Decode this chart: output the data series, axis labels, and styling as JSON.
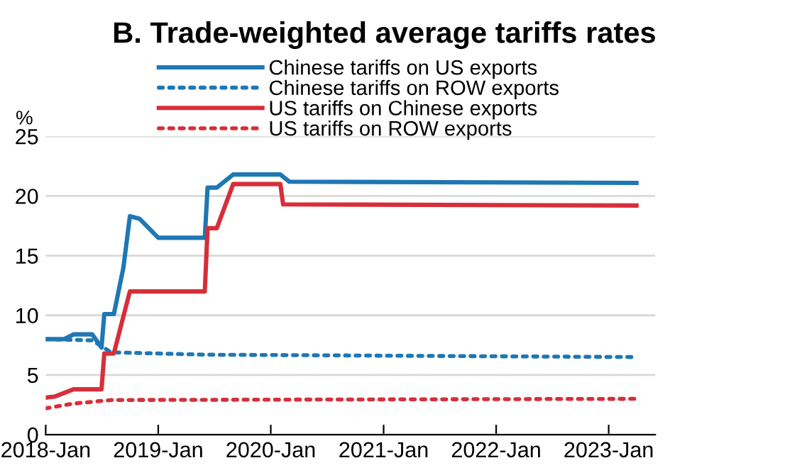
{
  "chart_data": {
    "type": "line",
    "title": "B. Trade-weighted average tariffs rates",
    "ylabel": "%",
    "series": [
      {
        "name": "Chinese tariffs on US exports",
        "color": "#1f77b4",
        "line_style": "solid",
        "x": [
          "2018-01-01",
          "2018-03-01",
          "2018-04-01",
          "2018-06-01",
          "2018-07-01",
          "2018-07-10",
          "2018-08-10",
          "2018-09-10",
          "2018-10-01",
          "2018-11-01",
          "2019-01-01",
          "2019-06-01",
          "2019-06-10",
          "2019-07-10",
          "2019-09-01",
          "2020-02-01",
          "2020-03-01",
          "2023-04-01"
        ],
        "values": [
          8,
          8,
          8.4,
          8.4,
          7.3,
          10.1,
          10.1,
          14,
          18.3,
          18.1,
          16.5,
          16.5,
          20.7,
          20.7,
          21.8,
          21.8,
          21.2,
          21.1
        ]
      },
      {
        "name": "Chinese tariffs on ROW exports",
        "color": "#1f77b4",
        "line_style": "dotted",
        "x": [
          "2018-01-01",
          "2018-06-01",
          "2018-08-01",
          "2019-06-01",
          "2023-04-01"
        ],
        "values": [
          8,
          7.9,
          6.9,
          6.7,
          6.5
        ]
      },
      {
        "name": "US tariffs on Chinese exports",
        "color": "#d62f3a",
        "line_style": "solid",
        "x": [
          "2018-01-01",
          "2018-02-01",
          "2018-04-01",
          "2018-07-01",
          "2018-07-10",
          "2018-08-10",
          "2018-10-01",
          "2019-06-01",
          "2019-06-10",
          "2019-07-10",
          "2019-09-01",
          "2020-02-01",
          "2020-02-10",
          "2023-04-01"
        ],
        "values": [
          3.1,
          3.2,
          3.8,
          3.8,
          6.8,
          6.8,
          12,
          12,
          17.3,
          17.3,
          21,
          21,
          19.3,
          19.2
        ]
      },
      {
        "name": "US tariffs on ROW exports",
        "color": "#d62f3a",
        "line_style": "dotted",
        "x": [
          "2018-01-01",
          "2018-04-01",
          "2018-08-01",
          "2023-04-01"
        ],
        "values": [
          2.2,
          2.6,
          2.9,
          3.0
        ]
      }
    ],
    "xlim": [
      "2018-01-01",
      "2023-06-01"
    ],
    "xticks": [
      {
        "value": "2018-01-01",
        "label": "2018-Jan"
      },
      {
        "value": "2019-01-01",
        "label": "2019-Jan"
      },
      {
        "value": "2020-01-01",
        "label": "2020-Jan"
      },
      {
        "value": "2021-01-01",
        "label": "2021-Jan"
      },
      {
        "value": "2022-01-01",
        "label": "2022-Jan"
      },
      {
        "value": "2023-01-01",
        "label": "2023-Jan"
      }
    ],
    "ylim": [
      0,
      25
    ],
    "yticks": [
      0,
      5,
      10,
      15,
      20,
      25
    ],
    "grid": "y",
    "legend": "top",
    "marker": "none"
  }
}
